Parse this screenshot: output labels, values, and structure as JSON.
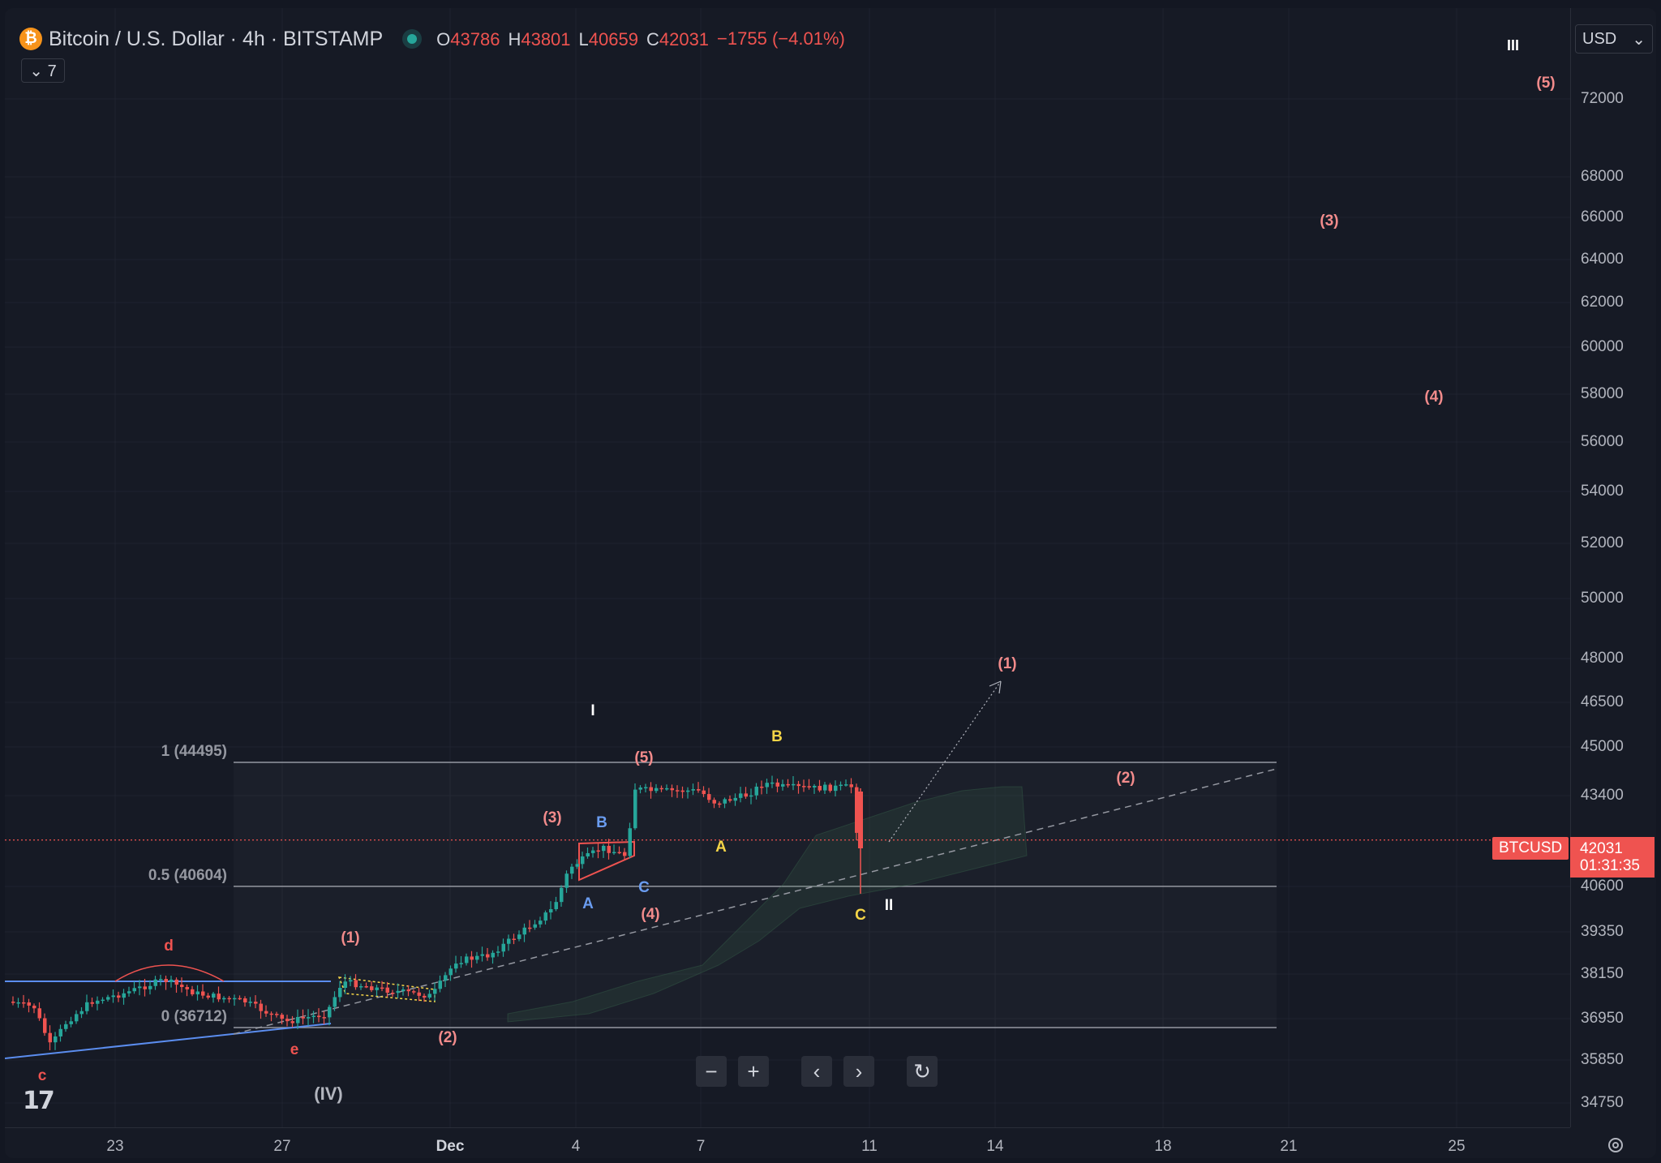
{
  "header": {
    "logo_glyph": "₿",
    "symbol_title": "Bitcoin / U.S. Dollar · 4h · BITSTAMP",
    "ohlc": [
      {
        "k": "O",
        "v": "43786"
      },
      {
        "k": "H",
        "v": "43801"
      },
      {
        "k": "L",
        "v": "40659"
      },
      {
        "k": "C",
        "v": "42031"
      }
    ],
    "change": "−1755 (−4.01%)",
    "indicators_toggle": "⌄ 7"
  },
  "currency": {
    "value": "USD",
    "arrow": "⌄"
  },
  "legend_toggle": "III",
  "price_axis": {
    "ticks": [
      "72000",
      "68000",
      "66000",
      "64000",
      "62000",
      "60000",
      "58000",
      "56000",
      "54000",
      "52000",
      "50000",
      "48000",
      "46500",
      "45000",
      "43400",
      "40600",
      "39350",
      "38150",
      "36950",
      "35850",
      "34750"
    ],
    "last_price": "42031",
    "countdown": "01:31:35",
    "symbol_tag": "BTCUSD"
  },
  "time_axis": {
    "ticks": [
      {
        "label": "23"
      },
      {
        "label": "27"
      },
      {
        "label": "Dec",
        "bold": true
      },
      {
        "label": "4"
      },
      {
        "label": "7"
      },
      {
        "label": "11"
      },
      {
        "label": "14"
      },
      {
        "label": "18"
      },
      {
        "label": "21"
      },
      {
        "label": "25"
      }
    ]
  },
  "fib_levels": [
    {
      "label": "1 (44495)",
      "price": 44495
    },
    {
      "label": "0.5 (40604)",
      "price": 40604
    },
    {
      "label": "0 (36712)",
      "price": 36712
    }
  ],
  "wave_labels": {
    "c_low": "c",
    "d": "d",
    "e": "e",
    "IV": "(IV)",
    "w1": "(1)",
    "w2": "(2)",
    "w3": "(3)",
    "w4": "(4)",
    "w5": "(5)",
    "A_blue": "A",
    "B_blue": "B",
    "C_blue": "C",
    "I": "I",
    "II": "II",
    "A_yellow": "A",
    "B_yellow": "B",
    "C_yellow": "C",
    "proj1": "(1)",
    "proj2": "(2)",
    "proj3": "(3)",
    "proj4": "(4)",
    "proj5": "(5)"
  },
  "nav": {
    "zoom_out": "−",
    "zoom_in": "+",
    "left": "‹",
    "right": "›",
    "reset": "↻"
  },
  "brand_logo": "17",
  "colors": {
    "up": "#26a69a",
    "down": "#ef5350",
    "accent_red": "#ef5350",
    "yellow": "#f5d547",
    "blue": "#6a9cf0"
  }
}
